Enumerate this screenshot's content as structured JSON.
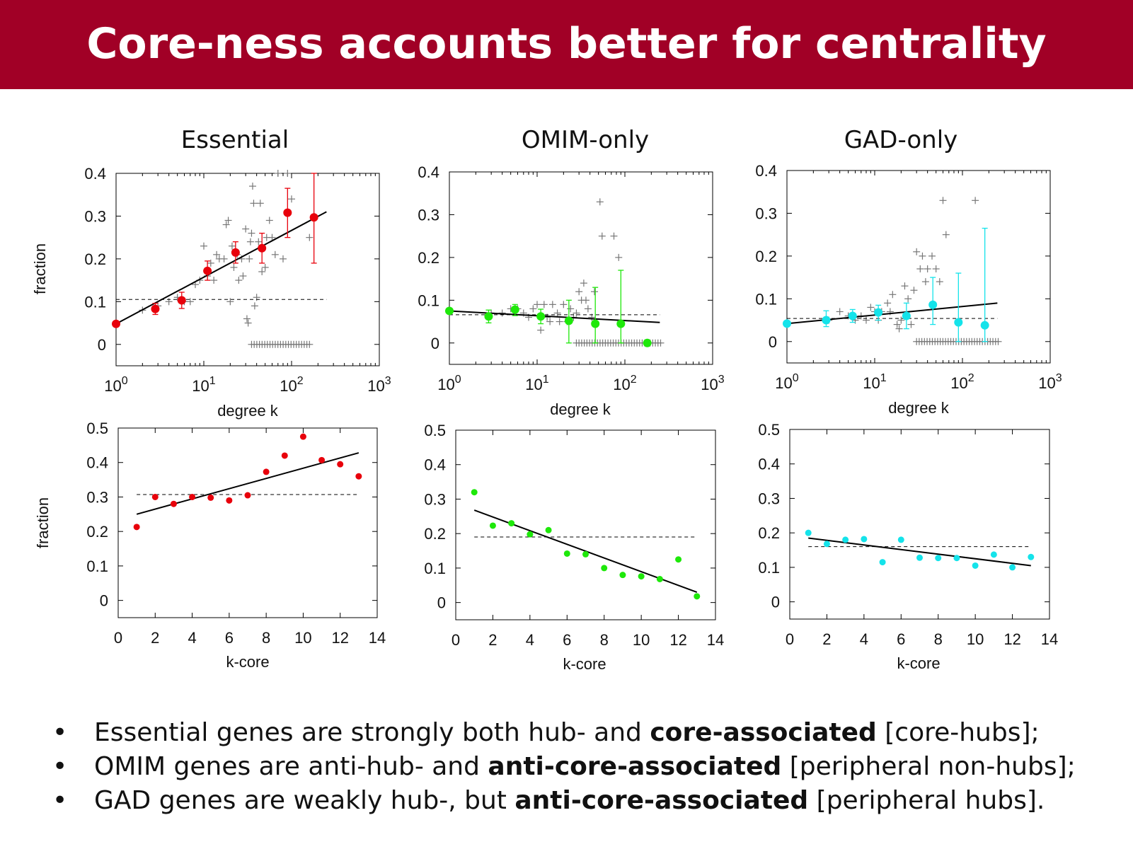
{
  "slide": {
    "title": "Core-ness accounts better for centrality"
  },
  "panel_titles": [
    "Essential",
    "OMIM-only",
    "GAD-only"
  ],
  "bullets": [
    {
      "before": "Essential genes are strongly both hub- and ",
      "bold": "core-associated",
      "after": " [core-hubs];"
    },
    {
      "before": "OMIM genes are anti-hub- and ",
      "bold": "anti-core-associated",
      "after": " [peripheral non-hubs];"
    },
    {
      "before": "GAD genes are weakly hub-, but ",
      "bold": "anti-core-associated",
      "after": " [peripheral hubs]."
    }
  ],
  "bullet_symbol": "•",
  "colors": {
    "banner": "#a10026",
    "essential": "#e8000b",
    "omim": "#1ee80a",
    "gad": "#14e3ea",
    "raw": "#777777"
  },
  "chart_data": [
    {
      "type": "scatter",
      "panel": "Essential",
      "xscale": "log",
      "xlim": [
        1,
        1000
      ],
      "ylim": [
        -0.05,
        0.4
      ],
      "xticks": [
        1,
        10,
        100,
        1000
      ],
      "xtick_labels": [
        "0",
        "1",
        "2",
        "3"
      ],
      "xtick_base": "10",
      "yticks": [
        0,
        0.1,
        0.2,
        0.3,
        0.4
      ],
      "ytick_labels": [
        "0",
        "0.1",
        "0.2",
        "0.3",
        "0.4"
      ],
      "xlabel": "degree k",
      "ylabel": "fraction",
      "grid": false,
      "color": "#e8000b",
      "baseline": 0.105,
      "fit": {
        "x": [
          1,
          250
        ],
        "y": [
          0.048,
          0.31
        ]
      },
      "points": [
        {
          "x": 1.0,
          "y": 0.048,
          "lo": 0.048,
          "hi": 0.048
        },
        {
          "x": 2.8,
          "y": 0.083,
          "lo": 0.07,
          "hi": 0.096
        },
        {
          "x": 5.6,
          "y": 0.103,
          "lo": 0.084,
          "hi": 0.122
        },
        {
          "x": 11,
          "y": 0.172,
          "lo": 0.15,
          "hi": 0.195
        },
        {
          "x": 23,
          "y": 0.215,
          "lo": 0.19,
          "hi": 0.24
        },
        {
          "x": 46,
          "y": 0.225,
          "lo": 0.19,
          "hi": 0.26
        },
        {
          "x": 90,
          "y": 0.308,
          "lo": 0.25,
          "hi": 0.365
        },
        {
          "x": 180,
          "y": 0.297,
          "lo": 0.19,
          "hi": 0.4
        }
      ],
      "raw_points": [
        [
          2,
          0.08
        ],
        [
          3,
          0.09
        ],
        [
          4,
          0.1
        ],
        [
          5,
          0.11
        ],
        [
          6,
          0.1
        ],
        [
          7,
          0.1
        ],
        [
          8,
          0.14
        ],
        [
          9,
          0.15
        ],
        [
          10,
          0.23
        ],
        [
          11,
          0.16
        ],
        [
          12,
          0.19
        ],
        [
          13,
          0.15
        ],
        [
          14,
          0.21
        ],
        [
          15,
          0.2
        ],
        [
          17,
          0.2
        ],
        [
          18,
          0.28
        ],
        [
          19,
          0.29
        ],
        [
          20,
          0.1
        ],
        [
          21,
          0.23
        ],
        [
          22,
          0.18
        ],
        [
          24,
          0.21
        ],
        [
          25,
          0.15
        ],
        [
          27,
          0.2
        ],
        [
          28,
          0.16
        ],
        [
          30,
          0.27
        ],
        [
          31,
          0.06
        ],
        [
          32,
          0.05
        ],
        [
          33,
          0.2
        ],
        [
          34,
          0.24
        ],
        [
          35,
          0.26
        ],
        [
          36,
          0.37
        ],
        [
          37,
          0.33
        ],
        [
          38,
          0.09
        ],
        [
          40,
          0.11
        ],
        [
          42,
          0.24
        ],
        [
          44,
          0.33
        ],
        [
          46,
          0.17
        ],
        [
          50,
          0.18
        ],
        [
          52,
          0.25
        ],
        [
          56,
          0.29
        ],
        [
          60,
          0.25
        ],
        [
          65,
          0.21
        ],
        [
          70,
          0.4
        ],
        [
          80,
          0.2
        ],
        [
          90,
          0.4
        ],
        [
          100,
          0.34
        ],
        [
          160,
          0.25
        ]
      ],
      "raw_zero_range": [
        35,
        170
      ]
    },
    {
      "type": "scatter",
      "panel": "OMIM-only",
      "xscale": "log",
      "xlim": [
        1,
        1000
      ],
      "ylim": [
        -0.05,
        0.4
      ],
      "xticks": [
        1,
        10,
        100,
        1000
      ],
      "xtick_labels": [
        "0",
        "1",
        "2",
        "3"
      ],
      "xtick_base": "10",
      "yticks": [
        0,
        0.1,
        0.2,
        0.3,
        0.4
      ],
      "ytick_labels": [
        "0",
        "0.1",
        "0.2",
        "0.3",
        "0.4"
      ],
      "xlabel": "degree k",
      "ylabel": "",
      "grid": false,
      "color": "#1ee80a",
      "baseline": 0.066,
      "fit": {
        "x": [
          1,
          250
        ],
        "y": [
          0.075,
          0.048
        ]
      },
      "points": [
        {
          "x": 1.0,
          "y": 0.075,
          "lo": 0.075,
          "hi": 0.075
        },
        {
          "x": 2.8,
          "y": 0.062,
          "lo": 0.047,
          "hi": 0.077
        },
        {
          "x": 5.6,
          "y": 0.078,
          "lo": 0.064,
          "hi": 0.09
        },
        {
          "x": 11,
          "y": 0.062,
          "lo": 0.045,
          "hi": 0.079
        },
        {
          "x": 23,
          "y": 0.052,
          "lo": 0.0,
          "hi": 0.1
        },
        {
          "x": 46,
          "y": 0.045,
          "lo": 0.0,
          "hi": 0.13
        },
        {
          "x": 90,
          "y": 0.045,
          "lo": 0.0,
          "hi": 0.17
        },
        {
          "x": 180,
          "y": 0.0,
          "lo": 0.0,
          "hi": 0.0
        }
      ],
      "raw_points": [
        [
          3,
          0.07
        ],
        [
          4,
          0.07
        ],
        [
          5,
          0.08
        ],
        [
          6,
          0.08
        ],
        [
          7,
          0.07
        ],
        [
          8,
          0.06
        ],
        [
          9,
          0.08
        ],
        [
          10,
          0.09
        ],
        [
          11,
          0.03
        ],
        [
          12,
          0.09
        ],
        [
          13,
          0.06
        ],
        [
          14,
          0.05
        ],
        [
          15,
          0.09
        ],
        [
          17,
          0.07
        ],
        [
          18,
          0.05
        ],
        [
          20,
          0.09
        ],
        [
          22,
          0.05
        ],
        [
          24,
          0.08
        ],
        [
          26,
          0.06
        ],
        [
          28,
          0.07
        ],
        [
          30,
          0.12
        ],
        [
          32,
          0.1
        ],
        [
          34,
          0.14
        ],
        [
          36,
          0.1
        ],
        [
          38,
          0.08
        ],
        [
          42,
          0.06
        ],
        [
          45,
          0.12
        ],
        [
          52,
          0.33
        ],
        [
          55,
          0.25
        ],
        [
          75,
          0.25
        ],
        [
          85,
          0.2
        ]
      ],
      "raw_zero_range": [
        28,
        260
      ]
    },
    {
      "type": "scatter",
      "panel": "GAD-only",
      "xscale": "log",
      "xlim": [
        1,
        1000
      ],
      "ylim": [
        -0.05,
        0.4
      ],
      "xticks": [
        1,
        10,
        100,
        1000
      ],
      "xtick_labels": [
        "0",
        "1",
        "2",
        "3"
      ],
      "xtick_base": "10",
      "yticks": [
        0,
        0.1,
        0.2,
        0.3,
        0.4
      ],
      "ytick_labels": [
        "0",
        "0.1",
        "0.2",
        "0.3",
        "0.4"
      ],
      "xlabel": "degree k",
      "ylabel": "",
      "grid": false,
      "color": "#14e3ea",
      "baseline": 0.054,
      "fit": {
        "x": [
          1,
          250
        ],
        "y": [
          0.042,
          0.09
        ]
      },
      "points": [
        {
          "x": 1.0,
          "y": 0.042,
          "lo": 0.042,
          "hi": 0.042
        },
        {
          "x": 2.8,
          "y": 0.05,
          "lo": 0.035,
          "hi": 0.072
        },
        {
          "x": 5.6,
          "y": 0.06,
          "lo": 0.045,
          "hi": 0.075
        },
        {
          "x": 11,
          "y": 0.068,
          "lo": 0.05,
          "hi": 0.085
        },
        {
          "x": 23,
          "y": 0.06,
          "lo": 0.03,
          "hi": 0.09
        },
        {
          "x": 46,
          "y": 0.086,
          "lo": 0.04,
          "hi": 0.15
        },
        {
          "x": 90,
          "y": 0.045,
          "lo": 0.0,
          "hi": 0.16
        },
        {
          "x": 180,
          "y": 0.038,
          "lo": 0.0,
          "hi": 0.265
        }
      ],
      "raw_points": [
        [
          3,
          0.05
        ],
        [
          4,
          0.07
        ],
        [
          5,
          0.06
        ],
        [
          6,
          0.05
        ],
        [
          7,
          0.06
        ],
        [
          8,
          0.05
        ],
        [
          9,
          0.08
        ],
        [
          10,
          0.07
        ],
        [
          11,
          0.05
        ],
        [
          12,
          0.07
        ],
        [
          14,
          0.09
        ],
        [
          15,
          0.07
        ],
        [
          16,
          0.11
        ],
        [
          18,
          0.04
        ],
        [
          19,
          0.03
        ],
        [
          20,
          0.05
        ],
        [
          22,
          0.13
        ],
        [
          24,
          0.1
        ],
        [
          26,
          0.04
        ],
        [
          28,
          0.12
        ],
        [
          30,
          0.21
        ],
        [
          33,
          0.17
        ],
        [
          35,
          0.2
        ],
        [
          38,
          0.14
        ],
        [
          40,
          0.17
        ],
        [
          45,
          0.2
        ],
        [
          50,
          0.17
        ],
        [
          55,
          0.14
        ],
        [
          60,
          0.33
        ],
        [
          65,
          0.25
        ],
        [
          140,
          0.33
        ]
      ],
      "raw_zero_range": [
        30,
        260
      ]
    },
    {
      "type": "scatter",
      "panel": "Essential",
      "xlim": [
        0,
        14
      ],
      "ylim": [
        -0.05,
        0.5
      ],
      "xticks": [
        0,
        2,
        4,
        6,
        8,
        10,
        12,
        14
      ],
      "xtick_labels": [
        "0",
        "2",
        "4",
        "6",
        "8",
        "10",
        "12",
        "14"
      ],
      "yticks": [
        0,
        0.1,
        0.2,
        0.3,
        0.4,
        0.5
      ],
      "ytick_labels": [
        "0",
        "0.1",
        "0.2",
        "0.3",
        "0.4",
        "0.5"
      ],
      "xlabel": "k-core",
      "ylabel": "fraction",
      "grid": false,
      "color": "#e8000b",
      "baseline": 0.307,
      "fit": {
        "x": [
          1,
          13
        ],
        "y": [
          0.25,
          0.428
        ]
      },
      "x": [
        1,
        2,
        3,
        4,
        5,
        6,
        7,
        8,
        9,
        10,
        11,
        12,
        13
      ],
      "y": [
        0.213,
        0.3,
        0.28,
        0.3,
        0.298,
        0.29,
        0.305,
        0.373,
        0.42,
        0.475,
        0.407,
        0.395,
        0.36
      ]
    },
    {
      "type": "scatter",
      "panel": "OMIM-only",
      "xlim": [
        0,
        14
      ],
      "ylim": [
        -0.05,
        0.5
      ],
      "xticks": [
        0,
        2,
        4,
        6,
        8,
        10,
        12,
        14
      ],
      "xtick_labels": [
        "0",
        "2",
        "4",
        "6",
        "8",
        "10",
        "12",
        "14"
      ],
      "yticks": [
        0,
        0.1,
        0.2,
        0.3,
        0.4,
        0.5
      ],
      "ytick_labels": [
        "0",
        "0.1",
        "0.2",
        "0.3",
        "0.4",
        "0.5"
      ],
      "xlabel": "k-core",
      "ylabel": "",
      "grid": false,
      "color": "#1ee80a",
      "baseline": 0.19,
      "fit": {
        "x": [
          1,
          13
        ],
        "y": [
          0.268,
          0.03
        ]
      },
      "x": [
        1,
        2,
        3,
        4,
        5,
        6,
        7,
        8,
        9,
        10,
        11,
        12,
        13
      ],
      "y": [
        0.32,
        0.223,
        0.23,
        0.198,
        0.21,
        0.142,
        0.14,
        0.1,
        0.08,
        0.076,
        0.068,
        0.125,
        0.018
      ]
    },
    {
      "type": "scatter",
      "panel": "GAD-only",
      "xlim": [
        0,
        14
      ],
      "ylim": [
        -0.05,
        0.5
      ],
      "xticks": [
        0,
        2,
        4,
        6,
        8,
        10,
        12,
        14
      ],
      "xtick_labels": [
        "0",
        "2",
        "4",
        "6",
        "8",
        "10",
        "12",
        "14"
      ],
      "yticks": [
        0,
        0.1,
        0.2,
        0.3,
        0.4,
        0.5
      ],
      "ytick_labels": [
        "0",
        "0.1",
        "0.2",
        "0.3",
        "0.4",
        "0.5"
      ],
      "xlabel": "k-core",
      "ylabel": "",
      "grid": false,
      "color": "#14e3ea",
      "baseline": 0.16,
      "fit": {
        "x": [
          1,
          13
        ],
        "y": [
          0.185,
          0.105
        ]
      },
      "x": [
        1,
        2,
        3,
        4,
        5,
        6,
        7,
        8,
        9,
        10,
        11,
        12,
        13
      ],
      "y": [
        0.2,
        0.168,
        0.18,
        0.182,
        0.115,
        0.18,
        0.128,
        0.127,
        0.127,
        0.105,
        0.137,
        0.1,
        0.13
      ]
    }
  ]
}
